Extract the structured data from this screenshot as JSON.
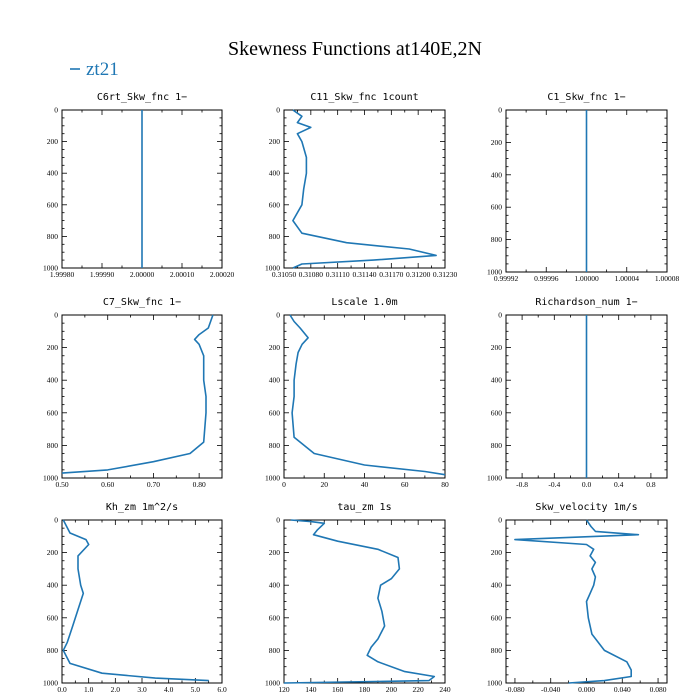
{
  "figure": {
    "title": "Skewness Functions at140E,2N",
    "legend": {
      "label": "zt21",
      "color": "#1f77b4"
    }
  },
  "chart_data": [
    {
      "type": "line",
      "title": "C6rt_Skw_fnc   1−",
      "xlim": [
        1.9998,
        2.0002
      ],
      "ylim": [
        0,
        1000
      ],
      "yinvert": true,
      "xticks": [
        "1.99980",
        "1.99990",
        "2.00000",
        "2.00010",
        "2.00020"
      ],
      "yticks": [
        "0",
        "200",
        "400",
        "600",
        "800",
        "1000"
      ],
      "series": [
        {
          "x": [
            2.0,
            2.0
          ],
          "y": [
            0,
            1000
          ]
        }
      ]
    },
    {
      "type": "line",
      "title": "C11_Skw_fnc   1count",
      "xlim": [
        0.3105,
        0.3123
      ],
      "ylim": [
        0,
        1000
      ],
      "yinvert": true,
      "xticks": [
        "0.31050",
        "0.31080",
        "0.31110",
        "0.31140",
        "0.31170",
        "0.31200",
        "0.31230"
      ],
      "yticks": [
        "0",
        "200",
        "400",
        "600",
        "800",
        "1000"
      ],
      "series": [
        {
          "x": [
            0.3106,
            0.3107,
            0.31065,
            0.3108,
            0.31065,
            0.3107,
            0.31075,
            0.31075,
            0.31072,
            0.3107,
            0.3106,
            0.3107,
            0.3112,
            0.3119,
            0.3122,
            0.3115,
            0.3107,
            0.3106
          ],
          "y": [
            0,
            40,
            80,
            110,
            150,
            200,
            300,
            400,
            500,
            600,
            700,
            780,
            840,
            880,
            920,
            950,
            975,
            1000
          ]
        }
      ]
    },
    {
      "type": "line",
      "title": "C1_Skw_fnc   1−",
      "xlim": [
        0.99992,
        1.00008
      ],
      "ylim": [
        0,
        1000
      ],
      "yinvert": true,
      "xticks": [
        "0.99992",
        "0.99996",
        "1.00000",
        "1.00004",
        "1.00008"
      ],
      "yticks": [
        "0",
        "200",
        "400",
        "600",
        "800",
        "1000"
      ],
      "series": [
        {
          "x": [
            1.0,
            1.0
          ],
          "y": [
            0,
            1000
          ]
        }
      ]
    },
    {
      "type": "line",
      "title": "C7_Skw_fnc   1−",
      "xlim": [
        0.5,
        0.85
      ],
      "ylim": [
        0,
        1000
      ],
      "yinvert": true,
      "xticks": [
        "0.50",
        "0.60",
        "0.70",
        "0.80"
      ],
      "yticks": [
        "0",
        "200",
        "400",
        "600",
        "800",
        "1000"
      ],
      "series": [
        {
          "x": [
            0.83,
            0.825,
            0.82,
            0.8,
            0.79,
            0.8,
            0.81,
            0.81,
            0.815,
            0.815,
            0.81,
            0.78,
            0.7,
            0.6,
            0.5
          ],
          "y": [
            0,
            40,
            80,
            120,
            150,
            180,
            250,
            400,
            500,
            600,
            780,
            850,
            900,
            950,
            970
          ]
        }
      ]
    },
    {
      "type": "line",
      "title": "Lscale   1.0m",
      "xlim": [
        0,
        80
      ],
      "ylim": [
        0,
        1000
      ],
      "yinvert": true,
      "xticks": [
        "0",
        "20",
        "40",
        "60",
        "80"
      ],
      "yticks": [
        "0",
        "200",
        "400",
        "600",
        "800",
        "1000"
      ],
      "series": [
        {
          "x": [
            3,
            5,
            8,
            12,
            9,
            7,
            6,
            5,
            5,
            4,
            5,
            15,
            40,
            70,
            80
          ],
          "y": [
            0,
            40,
            80,
            140,
            180,
            230,
            300,
            400,
            500,
            600,
            750,
            850,
            920,
            960,
            980
          ]
        }
      ]
    },
    {
      "type": "line",
      "title": "Richardson_num   1−",
      "xlim": [
        -1,
        1
      ],
      "ylim": [
        0,
        1000
      ],
      "yinvert": true,
      "xticks": [
        "-0.8",
        "-0.4",
        "0.0",
        "0.4",
        "0.8"
      ],
      "yticks": [
        "0",
        "200",
        "400",
        "600",
        "800",
        "1000"
      ],
      "series": [
        {
          "x": [
            0,
            0
          ],
          "y": [
            0,
            1000
          ]
        }
      ]
    },
    {
      "type": "line",
      "title": "Kh_zm   1m^2/s",
      "xlim": [
        0,
        6
      ],
      "ylim": [
        0,
        1000
      ],
      "yinvert": true,
      "xticks": [
        "0.0",
        "1.0",
        "2.0",
        "3.0",
        "4.0",
        "5.0",
        "6.0"
      ],
      "yticks": [
        "0",
        "200",
        "400",
        "600",
        "800",
        "1000"
      ],
      "series": [
        {
          "x": [
            0.05,
            0.3,
            0.9,
            1.0,
            0.6,
            0.6,
            0.7,
            0.8,
            0.6,
            0.4,
            0.2,
            0.05,
            0.3,
            1.5,
            3.5,
            5.5
          ],
          "y": [
            0,
            80,
            120,
            150,
            220,
            300,
            400,
            450,
            550,
            650,
            750,
            800,
            880,
            940,
            970,
            985
          ]
        }
      ]
    },
    {
      "type": "line",
      "title": "tau_zm   1s",
      "xlim": [
        120,
        240
      ],
      "ylim": [
        0,
        1000
      ],
      "yinvert": true,
      "xticks": [
        "120",
        "140",
        "160",
        "180",
        "200",
        "220",
        "240"
      ],
      "yticks": [
        "0",
        "200",
        "400",
        "600",
        "800",
        "1000"
      ],
      "series": [
        {
          "x": [
            125,
            140,
            150,
            145,
            142,
            160,
            190,
            205,
            206,
            200,
            192,
            190,
            193,
            195,
            190,
            185,
            182,
            190,
            210,
            232,
            228,
            120
          ],
          "y": [
            0,
            10,
            20,
            60,
            90,
            130,
            180,
            230,
            300,
            360,
            400,
            480,
            560,
            650,
            730,
            780,
            830,
            870,
            930,
            960,
            985,
            1000
          ]
        }
      ]
    },
    {
      "type": "line",
      "title": "Skw_velocity   1m/s",
      "xlim": [
        -0.09,
        0.09
      ],
      "ylim": [
        0,
        1000
      ],
      "yinvert": true,
      "xticks": [
        "-0.080",
        "-0.040",
        "0.000",
        "0.040",
        "0.080"
      ],
      "yticks": [
        "0",
        "200",
        "400",
        "600",
        "800",
        "1000"
      ],
      "series": [
        {
          "x": [
            0.0,
            0.005,
            0.01,
            0.058,
            -0.08,
            0.0,
            0.008,
            0.004,
            0.01,
            0.006,
            0.01,
            0.008,
            0.004,
            0.0,
            0.002,
            0.006,
            0.02,
            0.045,
            0.05,
            0.05,
            0.02,
            -0.02
          ],
          "y": [
            0,
            40,
            70,
            90,
            120,
            150,
            180,
            220,
            260,
            300,
            350,
            400,
            450,
            500,
            600,
            700,
            800,
            870,
            920,
            960,
            985,
            1000
          ]
        }
      ]
    }
  ]
}
